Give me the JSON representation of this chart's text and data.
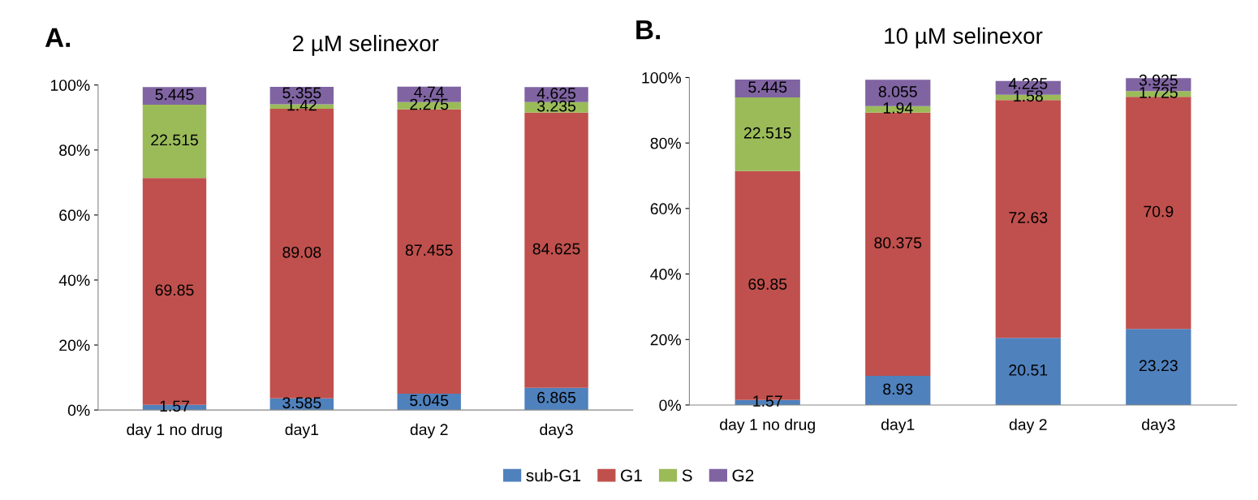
{
  "chart_data": [
    {
      "type": "bar",
      "stacked": true,
      "title": "2 µM selinexor",
      "annotations": [
        "A."
      ],
      "categories": [
        "day 1 no drug",
        "day1",
        "day 2",
        "day3"
      ],
      "ylim": [
        0,
        100
      ],
      "yticks": [
        {
          "value": 0,
          "label": "0%"
        },
        {
          "value": 20,
          "label": "20%"
        },
        {
          "value": 40,
          "label": "40%"
        },
        {
          "value": 60,
          "label": "60%"
        },
        {
          "value": 80,
          "label": "80%"
        },
        {
          "value": 100,
          "label": "100%"
        }
      ],
      "data_labels": true,
      "grid": false,
      "legend": "bottom",
      "series": [
        {
          "name": "sub-G1",
          "color": "#4f81bd",
          "values": [
            1.57,
            3.585,
            5.045,
            6.865
          ]
        },
        {
          "name": "G1",
          "color": "#c0504d",
          "values": [
            69.85,
            89.08,
            87.455,
            84.625
          ]
        },
        {
          "name": "S",
          "color": "#9bbb59",
          "values": [
            22.515,
            1.42,
            2.275,
            3.235
          ]
        },
        {
          "name": "G2",
          "color": "#8064a2",
          "values": [
            5.445,
            5.355,
            4.74,
            4.625
          ]
        }
      ]
    },
    {
      "type": "bar",
      "stacked": true,
      "title": "10 µM selinexor",
      "annotations": [
        "B."
      ],
      "categories": [
        "day 1 no drug",
        "day1",
        "day 2",
        "day3"
      ],
      "ylim": [
        0,
        100
      ],
      "yticks": [
        {
          "value": 0,
          "label": "0%"
        },
        {
          "value": 20,
          "label": "20%"
        },
        {
          "value": 40,
          "label": "40%"
        },
        {
          "value": 60,
          "label": "60%"
        },
        {
          "value": 80,
          "label": "80%"
        },
        {
          "value": 100,
          "label": "100%"
        }
      ],
      "data_labels": true,
      "grid": false,
      "legend": "bottom",
      "series": [
        {
          "name": "sub-G1",
          "color": "#4f81bd",
          "values": [
            1.57,
            8.93,
            20.51,
            23.23
          ]
        },
        {
          "name": "G1",
          "color": "#c0504d",
          "values": [
            69.85,
            80.375,
            72.63,
            70.9
          ]
        },
        {
          "name": "S",
          "color": "#9bbb59",
          "values": [
            22.515,
            1.94,
            1.58,
            1.725
          ]
        },
        {
          "name": "G2",
          "color": "#8064a2",
          "values": [
            5.445,
            8.055,
            4.225,
            3.925
          ]
        }
      ]
    }
  ]
}
